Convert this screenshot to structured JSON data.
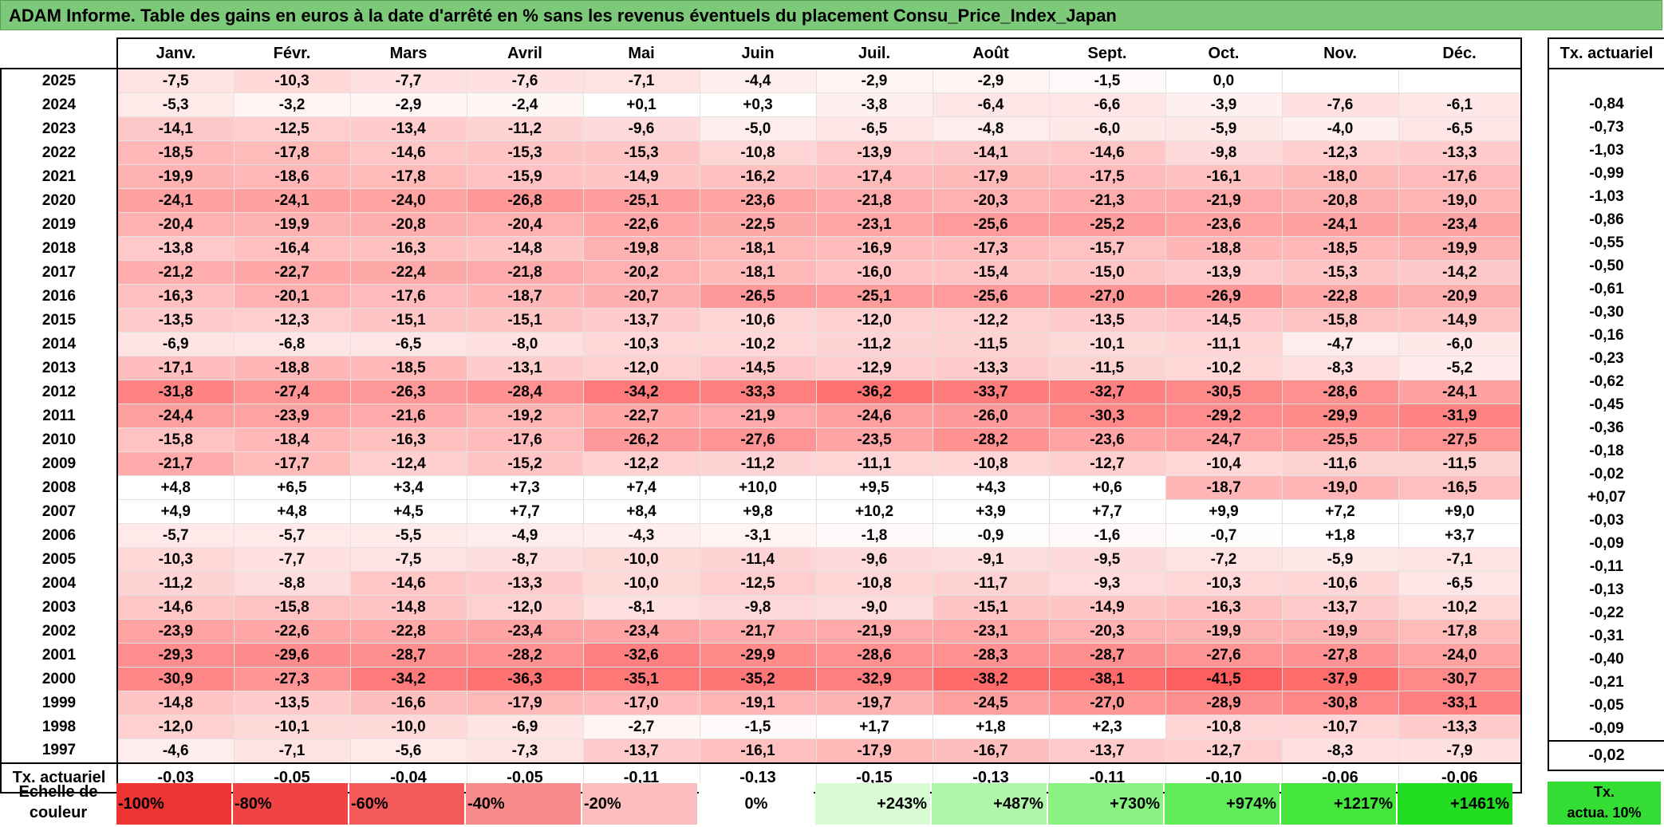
{
  "title": "ADAM Informe. Table des gains en euros à la date d'arrêté en % sans les revenus éventuels du placement Consu_Price_Index_Japan",
  "months": [
    "Janv.",
    "Févr.",
    "Mars",
    "Avril",
    "Mai",
    "Juin",
    "Juil.",
    "Août",
    "Sept.",
    "Oct.",
    "Nov.",
    "Déc."
  ],
  "side_header": "Tx. actuariel",
  "rows": [
    {
      "year": "2025",
      "values": [
        "-7,5",
        "-10,3",
        "-7,7",
        "-7,6",
        "-7,1",
        "-4,4",
        "-2,9",
        "-2,9",
        "-1,5",
        "0,0",
        "",
        ""
      ],
      "rate": ""
    },
    {
      "year": "2024",
      "values": [
        "-5,3",
        "-3,2",
        "-2,9",
        "-2,4",
        "+0,1",
        "+0,3",
        "-3,8",
        "-6,4",
        "-6,6",
        "-3,9",
        "-7,6",
        "-6,1"
      ],
      "rate": "-0,84"
    },
    {
      "year": "2023",
      "values": [
        "-14,1",
        "-12,5",
        "-13,4",
        "-11,2",
        "-9,6",
        "-5,0",
        "-6,5",
        "-4,8",
        "-6,0",
        "-5,9",
        "-4,0",
        "-6,5"
      ],
      "rate": "-0,73"
    },
    {
      "year": "2022",
      "values": [
        "-18,5",
        "-17,8",
        "-14,6",
        "-15,3",
        "-15,3",
        "-10,8",
        "-13,9",
        "-14,1",
        "-14,6",
        "-9,8",
        "-12,3",
        "-13,3"
      ],
      "rate": "-1,03"
    },
    {
      "year": "2021",
      "values": [
        "-19,9",
        "-18,6",
        "-17,8",
        "-15,9",
        "-14,9",
        "-16,2",
        "-17,4",
        "-17,9",
        "-17,5",
        "-16,1",
        "-18,0",
        "-17,6"
      ],
      "rate": "-0,99"
    },
    {
      "year": "2020",
      "values": [
        "-24,1",
        "-24,1",
        "-24,0",
        "-26,8",
        "-25,1",
        "-23,6",
        "-21,8",
        "-20,3",
        "-21,3",
        "-21,9",
        "-20,8",
        "-19,0"
      ],
      "rate": "-1,03"
    },
    {
      "year": "2019",
      "values": [
        "-20,4",
        "-19,9",
        "-20,8",
        "-20,4",
        "-22,6",
        "-22,5",
        "-23,1",
        "-25,6",
        "-25,2",
        "-23,6",
        "-24,1",
        "-23,4"
      ],
      "rate": "-0,86"
    },
    {
      "year": "2018",
      "values": [
        "-13,8",
        "-16,4",
        "-16,3",
        "-14,8",
        "-19,8",
        "-18,1",
        "-16,9",
        "-17,3",
        "-15,7",
        "-18,8",
        "-18,5",
        "-19,9"
      ],
      "rate": "-0,55"
    },
    {
      "year": "2017",
      "values": [
        "-21,2",
        "-22,7",
        "-22,4",
        "-21,8",
        "-20,2",
        "-18,1",
        "-16,0",
        "-15,4",
        "-15,0",
        "-13,9",
        "-15,3",
        "-14,2"
      ],
      "rate": "-0,50"
    },
    {
      "year": "2016",
      "values": [
        "-16,3",
        "-20,1",
        "-17,6",
        "-18,7",
        "-20,7",
        "-26,5",
        "-25,1",
        "-25,6",
        "-27,0",
        "-26,9",
        "-22,8",
        "-20,9"
      ],
      "rate": "-0,61"
    },
    {
      "year": "2015",
      "values": [
        "-13,5",
        "-12,3",
        "-15,1",
        "-15,1",
        "-13,7",
        "-10,6",
        "-12,0",
        "-12,2",
        "-13,5",
        "-14,5",
        "-15,8",
        "-14,9"
      ],
      "rate": "-0,30"
    },
    {
      "year": "2014",
      "values": [
        "-6,9",
        "-6,8",
        "-6,5",
        "-8,0",
        "-10,3",
        "-10,2",
        "-11,2",
        "-11,5",
        "-10,1",
        "-11,1",
        "-4,7",
        "-6,0"
      ],
      "rate": "-0,16"
    },
    {
      "year": "2013",
      "values": [
        "-17,1",
        "-18,8",
        "-18,5",
        "-13,1",
        "-12,0",
        "-14,5",
        "-12,9",
        "-13,3",
        "-11,5",
        "-10,2",
        "-8,3",
        "-5,2"
      ],
      "rate": "-0,23"
    },
    {
      "year": "2012",
      "values": [
        "-31,8",
        "-27,4",
        "-26,3",
        "-28,4",
        "-34,2",
        "-33,3",
        "-36,2",
        "-33,7",
        "-32,7",
        "-30,5",
        "-28,6",
        "-24,1"
      ],
      "rate": "-0,62"
    },
    {
      "year": "2011",
      "values": [
        "-24,4",
        "-23,9",
        "-21,6",
        "-19,2",
        "-22,7",
        "-21,9",
        "-24,6",
        "-26,0",
        "-30,3",
        "-29,2",
        "-29,9",
        "-31,9"
      ],
      "rate": "-0,45"
    },
    {
      "year": "2010",
      "values": [
        "-15,8",
        "-18,4",
        "-16,3",
        "-17,6",
        "-26,2",
        "-27,6",
        "-23,5",
        "-28,2",
        "-23,6",
        "-24,7",
        "-25,5",
        "-27,5"
      ],
      "rate": "-0,36"
    },
    {
      "year": "2009",
      "values": [
        "-21,7",
        "-17,7",
        "-12,4",
        "-15,2",
        "-12,2",
        "-11,2",
        "-11,1",
        "-10,8",
        "-12,7",
        "-10,4",
        "-11,6",
        "-11,5"
      ],
      "rate": "-0,18"
    },
    {
      "year": "2008",
      "values": [
        "+4,8",
        "+6,5",
        "+3,4",
        "+7,3",
        "+7,4",
        "+10,0",
        "+9,5",
        "+4,3",
        "+0,6",
        "-18,7",
        "-19,0",
        "-16,5"
      ],
      "rate": "-0,02"
    },
    {
      "year": "2007",
      "values": [
        "+4,9",
        "+4,8",
        "+4,5",
        "+7,7",
        "+8,4",
        "+9,8",
        "+10,2",
        "+3,9",
        "+7,7",
        "+9,9",
        "+7,2",
        "+9,0"
      ],
      "rate": "+0,07"
    },
    {
      "year": "2006",
      "values": [
        "-5,7",
        "-5,7",
        "-5,5",
        "-4,9",
        "-4,3",
        "-3,1",
        "-1,8",
        "-0,9",
        "-1,6",
        "-0,7",
        "+1,8",
        "+3,7"
      ],
      "rate": "-0,03"
    },
    {
      "year": "2005",
      "values": [
        "-10,3",
        "-7,7",
        "-7,5",
        "-8,7",
        "-10,0",
        "-11,4",
        "-9,6",
        "-9,1",
        "-9,5",
        "-7,2",
        "-5,9",
        "-7,1"
      ],
      "rate": "-0,09"
    },
    {
      "year": "2004",
      "values": [
        "-11,2",
        "-8,8",
        "-14,6",
        "-13,3",
        "-10,0",
        "-12,5",
        "-10,8",
        "-11,7",
        "-9,3",
        "-10,3",
        "-10,6",
        "-6,5"
      ],
      "rate": "-0,11"
    },
    {
      "year": "2003",
      "values": [
        "-14,6",
        "-15,8",
        "-14,8",
        "-12,0",
        "-8,1",
        "-9,8",
        "-9,0",
        "-15,1",
        "-14,9",
        "-16,3",
        "-13,7",
        "-10,2"
      ],
      "rate": "-0,13"
    },
    {
      "year": "2002",
      "values": [
        "-23,9",
        "-22,6",
        "-22,8",
        "-23,4",
        "-23,4",
        "-21,7",
        "-21,9",
        "-23,1",
        "-20,3",
        "-19,9",
        "-19,9",
        "-17,8"
      ],
      "rate": "-0,22"
    },
    {
      "year": "2001",
      "values": [
        "-29,3",
        "-29,6",
        "-28,7",
        "-28,2",
        "-32,6",
        "-29,9",
        "-28,6",
        "-28,3",
        "-28,7",
        "-27,6",
        "-27,8",
        "-24,0"
      ],
      "rate": "-0,31"
    },
    {
      "year": "2000",
      "values": [
        "-30,9",
        "-27,3",
        "-34,2",
        "-36,3",
        "-35,1",
        "-35,2",
        "-32,9",
        "-38,2",
        "-38,1",
        "-41,5",
        "-37,9",
        "-30,7"
      ],
      "rate": "-0,40"
    },
    {
      "year": "1999",
      "values": [
        "-14,8",
        "-13,5",
        "-16,6",
        "-17,9",
        "-17,0",
        "-19,1",
        "-19,7",
        "-24,5",
        "-27,0",
        "-28,9",
        "-30,8",
        "-33,1"
      ],
      "rate": "-0,21"
    },
    {
      "year": "1998",
      "values": [
        "-12,0",
        "-10,1",
        "-10,0",
        "-6,9",
        "-2,7",
        "-1,5",
        "+1,7",
        "+1,8",
        "+2,3",
        "-10,8",
        "-10,7",
        "-13,3"
      ],
      "rate": "-0,05"
    },
    {
      "year": "1997",
      "values": [
        "-4,6",
        "-7,1",
        "-5,6",
        "-7,3",
        "-13,7",
        "-16,1",
        "-17,9",
        "-16,7",
        "-13,7",
        "-12,7",
        "-8,3",
        "-7,9"
      ],
      "rate": "-0,09"
    }
  ],
  "total_row": {
    "label": "Tx. actuariel",
    "values": [
      "-0,03",
      "-0,05",
      "-0,04",
      "-0,05",
      "-0,11",
      "-0,13",
      "-0,15",
      "-0,13",
      "-0,11",
      "-0,10",
      "-0,06",
      "-0,06"
    ],
    "rate": "-0,02"
  },
  "scale": {
    "label_line1": "Echelle de",
    "label_line2": "couleur",
    "cells": [
      {
        "label": "-100%",
        "color": "#ee3333",
        "align": "left"
      },
      {
        "label": "-80%",
        "color": "#f04444",
        "align": "left"
      },
      {
        "label": "-60%",
        "color": "#f45a5a",
        "align": "left"
      },
      {
        "label": "-40%",
        "color": "#f78a8a",
        "align": "left"
      },
      {
        "label": "-20%",
        "color": "#fbbdbd",
        "align": "left"
      },
      {
        "label": "0%",
        "color": "#ffffff",
        "align": "mid"
      },
      {
        "label": "+243%",
        "color": "#d8fbd4",
        "align": "right"
      },
      {
        "label": "+487%",
        "color": "#b0f6aa",
        "align": "right"
      },
      {
        "label": "+730%",
        "color": "#8af283",
        "align": "right"
      },
      {
        "label": "+974%",
        "color": "#62ec5b",
        "align": "right"
      },
      {
        "label": "+1217%",
        "color": "#44e63d",
        "align": "right"
      },
      {
        "label": "+1461%",
        "color": "#22dd22",
        "align": "right"
      }
    ],
    "side_line1": "Tx.",
    "side_line2": "actua. 10%"
  }
}
